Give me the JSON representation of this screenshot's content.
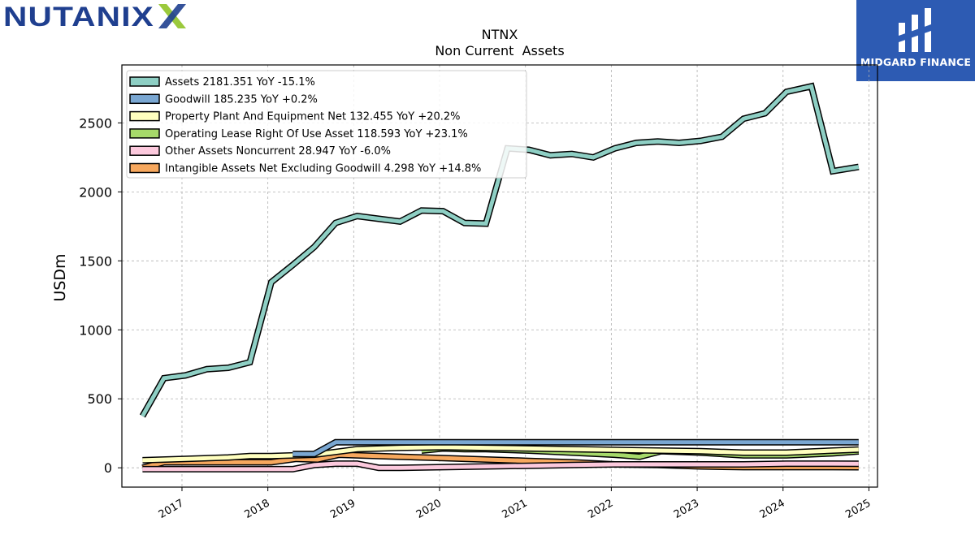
{
  "brand_left": {
    "text": "NUTANIX"
  },
  "brand_right": {
    "text": "MIDGARD FINANCE"
  },
  "chart_data": {
    "type": "line",
    "title": "NTNX",
    "subtitle": "Non Current  Assets",
    "xlabel": "",
    "ylabel": "USDm",
    "xlim": [
      2016.3,
      2025.1
    ],
    "ylim": [
      -140,
      2920
    ],
    "grid": true,
    "legend_position": "top-left",
    "x_ticks": [
      2017,
      2018,
      2019,
      2020,
      2021,
      2022,
      2023,
      2024,
      2025
    ],
    "x_tick_labels": [
      "2017",
      "2018",
      "2019",
      "2020",
      "2021",
      "2022",
      "2023",
      "2024",
      "2025"
    ],
    "y_ticks": [
      0,
      500,
      1000,
      1500,
      2000,
      2500
    ],
    "y_tick_labels": [
      "0",
      "500",
      "1000",
      "1500",
      "2000",
      "2500"
    ],
    "series": [
      {
        "name": "Assets",
        "legend": "Assets  2181.351 YoY -15.1%",
        "color": "#8ecfc4",
        "x": [
          2016.54,
          2016.79,
          2017.04,
          2017.29,
          2017.54,
          2017.79,
          2018.04,
          2018.29,
          2018.54,
          2018.79,
          2019.04,
          2019.29,
          2019.54,
          2019.79,
          2020.04,
          2020.29,
          2020.54,
          2020.79,
          2021.04,
          2021.29,
          2021.54,
          2021.79,
          2022.04,
          2022.29,
          2022.54,
          2022.79,
          2023.04,
          2023.29,
          2023.54,
          2023.79,
          2024.04,
          2024.33,
          2024.58,
          2024.88
        ],
        "values": [
          375,
          650,
          670,
          715,
          725,
          765,
          1345,
          1470,
          1600,
          1775,
          1825,
          1805,
          1785,
          1865,
          1860,
          1775,
          1770,
          2315,
          2305,
          2265,
          2275,
          2250,
          2315,
          2355,
          2365,
          2355,
          2370,
          2400,
          2530,
          2570,
          2725,
          2765,
          2150,
          2181
        ]
      },
      {
        "name": "Goodwill",
        "legend": "Goodwill  185.235 YoY +0.2%",
        "color": "#7aa7d2",
        "x": [
          2018.29,
          2018.54,
          2018.79,
          2019.04,
          2019.54,
          2020.04,
          2020.54,
          2021.04,
          2021.54,
          2022.04,
          2022.54,
          2023.04,
          2023.54,
          2024.04,
          2024.58,
          2024.88
        ],
        "values": [
          100,
          100,
          185,
          185,
          185,
          185,
          185,
          185,
          185,
          185,
          185,
          185,
          185,
          185,
          185,
          185
        ]
      },
      {
        "name": "Property Plant And Equipment Net",
        "legend": "Property Plant And Equipment Net  132.455 YoY +20.2%",
        "color": "#ffffbf",
        "x": [
          2016.54,
          2017.04,
          2017.54,
          2017.79,
          2018.04,
          2018.54,
          2018.79,
          2019.04,
          2019.54,
          2020.04,
          2020.54,
          2021.04,
          2021.54,
          2022.04,
          2022.54,
          2023.04,
          2023.54,
          2024.04,
          2024.58,
          2024.88
        ],
        "values": [
          55,
          65,
          75,
          85,
          85,
          95,
          115,
          135,
          145,
          150,
          145,
          140,
          135,
          130,
          125,
          120,
          110,
          110,
          125,
          132
        ]
      },
      {
        "name": "Operating Lease Right Of Use Asset",
        "legend": "Operating Lease Right Of Use Asset  118.593 YoY +23.1%",
        "color": "#a6d96a",
        "x": [
          2019.79,
          2020.04,
          2020.29,
          2020.54,
          2021.04,
          2021.54,
          2022.04,
          2022.33,
          2022.58,
          2023.04,
          2023.54,
          2024.04,
          2024.58,
          2024.88
        ],
        "values": [
          125,
          140,
          135,
          135,
          125,
          110,
          95,
          80,
          120,
          110,
          90,
          90,
          105,
          119
        ]
      },
      {
        "name": "Other Assets Noncurrent",
        "legend": "Other Assets Noncurrent  28.947 YoY -6.0%",
        "color": "#fcc9dd",
        "x": [
          2016.54,
          2016.79,
          2017.04,
          2017.54,
          2018.04,
          2018.29,
          2018.54,
          2018.79,
          2019.04,
          2019.29,
          2019.54,
          2020.04,
          2020.54,
          2021.04,
          2021.54,
          2022.04,
          2022.54,
          2023.04,
          2023.54,
          2024.04,
          2024.58,
          2024.88
        ],
        "values": [
          -10,
          -10,
          -10,
          -10,
          -10,
          -10,
          20,
          30,
          30,
          0,
          0,
          5,
          10,
          15,
          20,
          25,
          25,
          25,
          25,
          30,
          30,
          29
        ]
      },
      {
        "name": "Intangible Assets Net Excluding Goodwill",
        "legend": "Intangible Assets Net Excluding Goodwill  4.298 YoY +14.8%",
        "color": "#f7a85e",
        "x": [
          2016.54,
          2016.79,
          2017.04,
          2017.54,
          2018.04,
          2018.33,
          2018.58,
          2018.83,
          2019.04,
          2019.54,
          2020.04,
          2020.54,
          2021.04,
          2021.54,
          2022.04,
          2022.54,
          2023.04,
          2023.54,
          2024.04,
          2024.58,
          2024.88
        ],
        "values": [
          0,
          40,
          40,
          40,
          40,
          65,
          60,
          95,
          90,
          80,
          70,
          60,
          50,
          40,
          25,
          20,
          10,
          5,
          5,
          5,
          4
        ]
      }
    ]
  }
}
